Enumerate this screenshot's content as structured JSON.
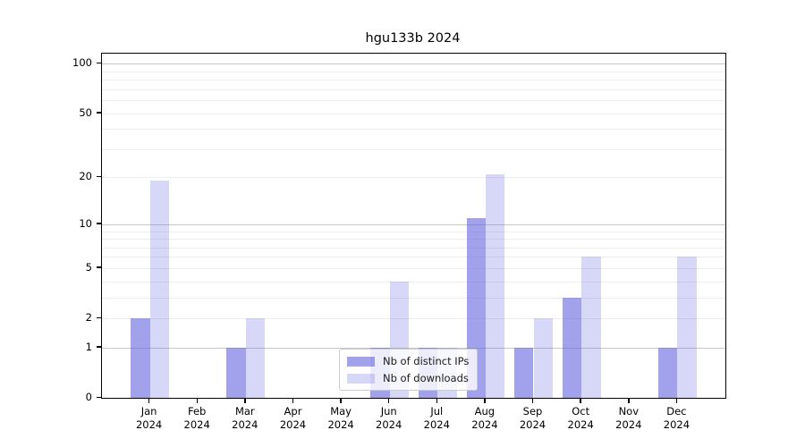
{
  "title": "hgu133b 2024",
  "chart_data": {
    "type": "bar",
    "categories": [
      "Jan",
      "Feb",
      "Mar",
      "Apr",
      "May",
      "Jun",
      "Jul",
      "Aug",
      "Sep",
      "Oct",
      "Nov",
      "Dec"
    ],
    "year_label": "2024",
    "series": [
      {
        "name": "Nb of distinct IPs",
        "color": "rgba(102,102,224,0.61)",
        "solid_color": "#a2a2ee",
        "values": [
          2,
          0,
          1,
          0,
          0,
          1,
          1,
          11,
          1,
          3,
          0,
          1
        ]
      },
      {
        "name": "Nb of downloads",
        "color": "rgba(102,102,224,0.26)",
        "solid_color": "#d7d7f7",
        "values": [
          19,
          0,
          2,
          0,
          0,
          4,
          1,
          21,
          2,
          6,
          0,
          6
        ]
      }
    ],
    "title": "hgu133b 2024",
    "xlabel": "",
    "ylabel": "",
    "y_scale": "log1p",
    "ylim": [
      0,
      115
    ],
    "y_ticks": [
      0,
      1,
      2,
      5,
      10,
      20,
      50,
      100
    ],
    "grid": {
      "on": true,
      "major_values": [
        1,
        10,
        100
      ],
      "minor_values": [
        2,
        3,
        4,
        5,
        6,
        7,
        8,
        9,
        20,
        30,
        40,
        50,
        60,
        70,
        80,
        90
      ],
      "major_color": "#c6c6c6",
      "minor_color": "#ededed"
    },
    "legend_position": "lower center"
  }
}
